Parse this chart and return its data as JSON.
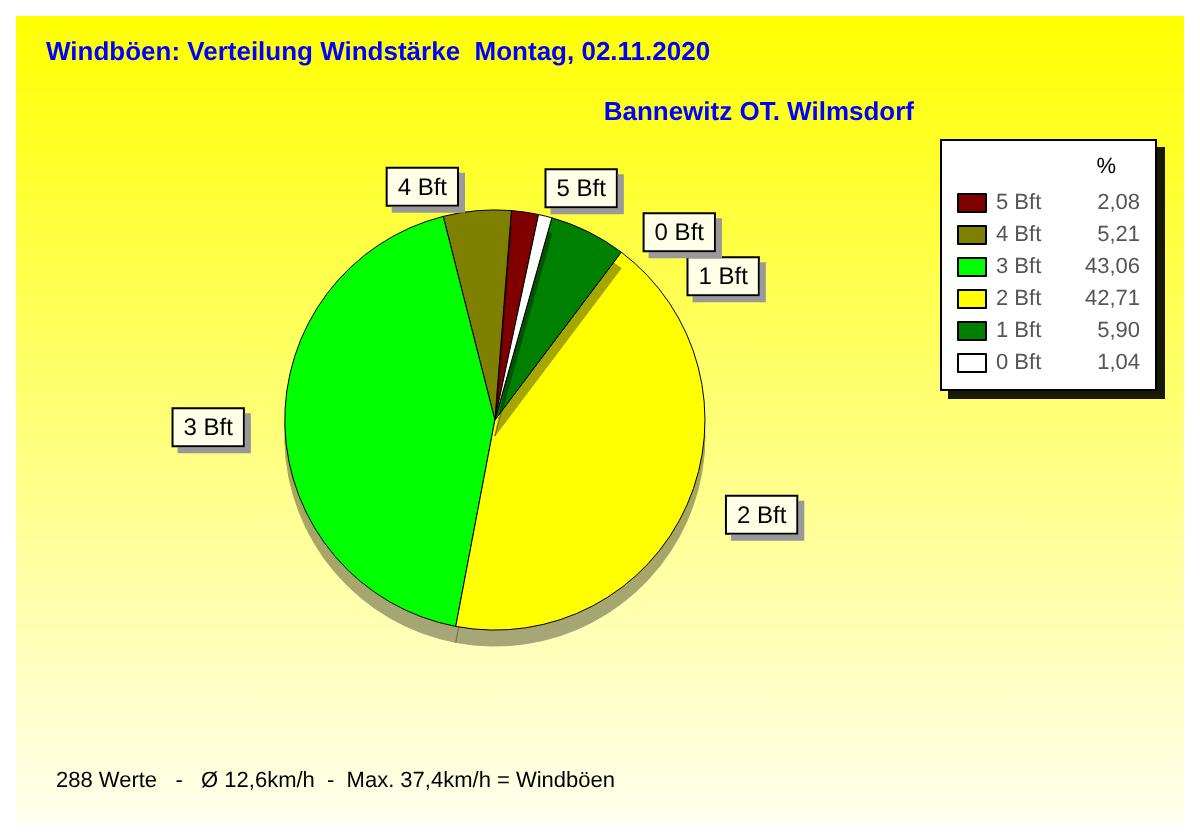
{
  "chart_data": {
    "type": "pie",
    "title": "Windböen: Verteilung Windstärke  Montag, 02.11.2020",
    "subtitle": "Bannewitz OT. Wilmsdorf",
    "legend_title": "%",
    "legend": "top right",
    "categories": [
      "5 Bft",
      "4 Bft",
      "3 Bft",
      "2 Bft",
      "1 Bft",
      "0 Bft"
    ],
    "values": [
      2.08,
      5.21,
      43.06,
      42.71,
      5.9,
      1.04
    ],
    "value_labels": [
      "2,08",
      "5,21",
      "43,06",
      "42,71",
      "5,90",
      "1,04"
    ],
    "colors": [
      "#800000",
      "#808000",
      "#00ff00",
      "#ffff00",
      "#008000",
      "#ffffff"
    ],
    "annotations": [
      "288 Werte   -   Ø 12,6km/h  -  Max. 37,4km/h = Windböen"
    ]
  }
}
